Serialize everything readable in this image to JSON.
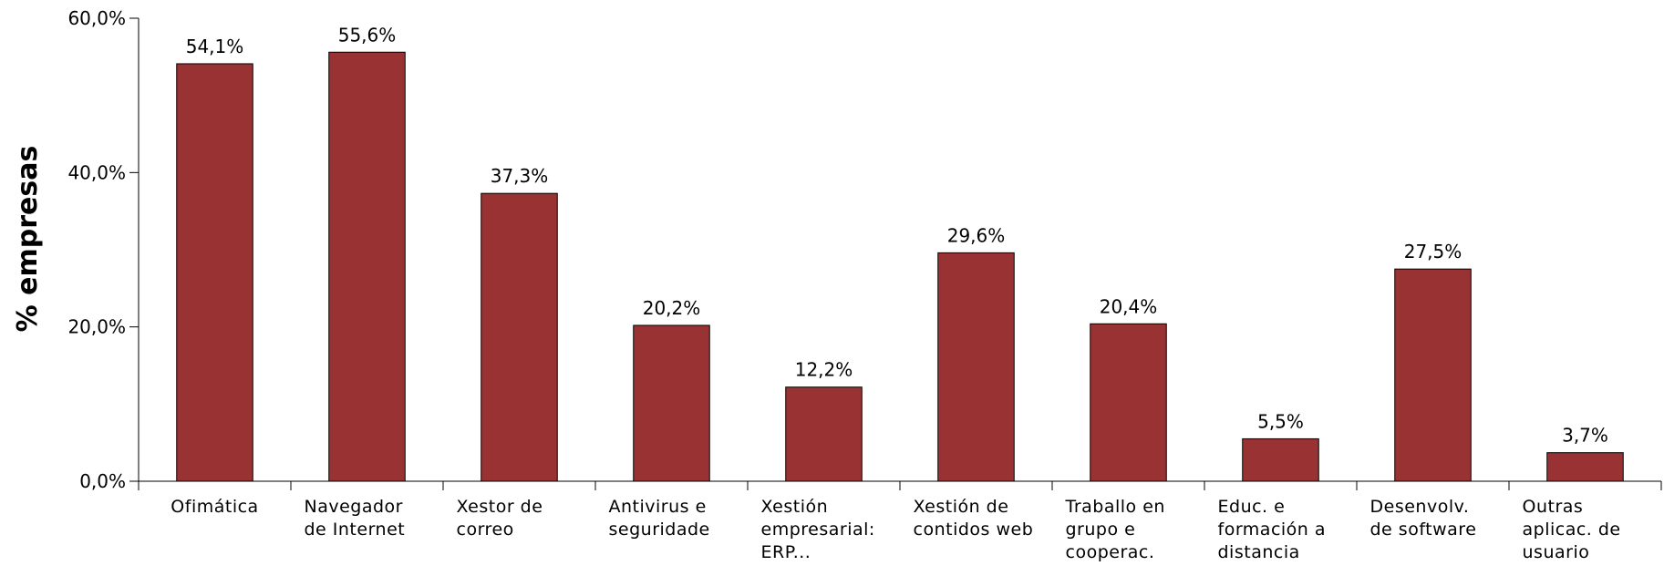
{
  "chart_data": {
    "type": "bar",
    "ylabel": "% empresas",
    "categories": [
      "Ofimática",
      "Navegador de Internet",
      "Xestor de correo",
      "Antivirus e seguridade",
      "Xestión empresarial: ERP...",
      "Xestión de contidos web",
      "Traballo en grupo e cooperac.",
      "Educ. e formación a distancia",
      "Desenvolv. de software",
      "Outras aplicac. de usuario"
    ],
    "values": [
      54.1,
      55.6,
      37.3,
      20.2,
      12.2,
      29.6,
      20.4,
      5.5,
      27.5,
      3.7
    ],
    "value_labels": [
      "54,1%",
      "55,6%",
      "37,3%",
      "20,2%",
      "12,2%",
      "29,6%",
      "20,4%",
      "5,5%",
      "27,5%",
      "3,7%"
    ],
    "color": "#993333",
    "ylim": [
      0,
      60
    ],
    "yticks": [
      {
        "value": 0,
        "label": "0,0%"
      },
      {
        "value": 20,
        "label": "20,0%"
      },
      {
        "value": 40,
        "label": "40,0%"
      },
      {
        "value": 60,
        "label": "60,0%"
      }
    ]
  }
}
